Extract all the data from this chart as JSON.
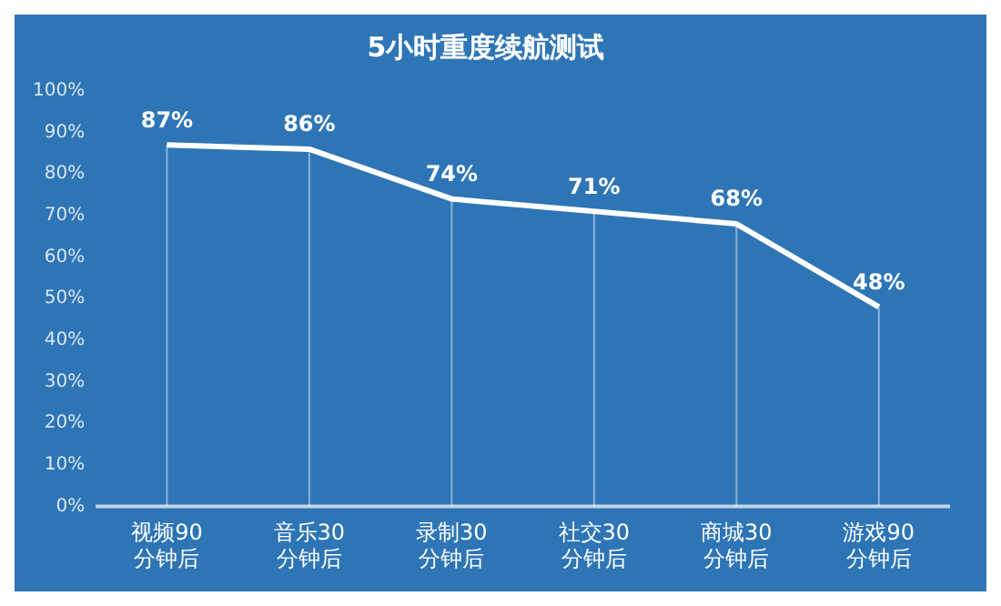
{
  "chart_data": {
    "type": "line",
    "title": "5小时重度续航测试",
    "categories": [
      "视频90分钟后",
      "音乐30分钟后",
      "录制30分钟后",
      "社交30分钟后",
      "商城30分钟后",
      "游戏90分钟后"
    ],
    "series": [
      {
        "color": "#ffffff",
        "values": [
          87,
          86,
          74,
          71,
          68,
          48
        ],
        "value_labels": [
          "87%",
          "86%",
          "74%",
          "71%",
          "68%",
          "48%"
        ]
      }
    ],
    "ylim": [
      0,
      100
    ],
    "yticks": [
      {
        "value": 0,
        "label": "0%"
      },
      {
        "value": 10,
        "label": "10%"
      },
      {
        "value": 20,
        "label": "20%"
      },
      {
        "value": 30,
        "label": "30%"
      },
      {
        "value": 40,
        "label": "40%"
      },
      {
        "value": 50,
        "label": "50%"
      },
      {
        "value": 60,
        "label": "60%"
      },
      {
        "value": 70,
        "label": "70%"
      },
      {
        "value": 80,
        "label": "80%"
      },
      {
        "value": 90,
        "label": "90%"
      },
      {
        "value": 100,
        "label": "100%"
      }
    ],
    "grid": "x",
    "legend": false,
    "marker": "none",
    "line_style": "solid"
  }
}
